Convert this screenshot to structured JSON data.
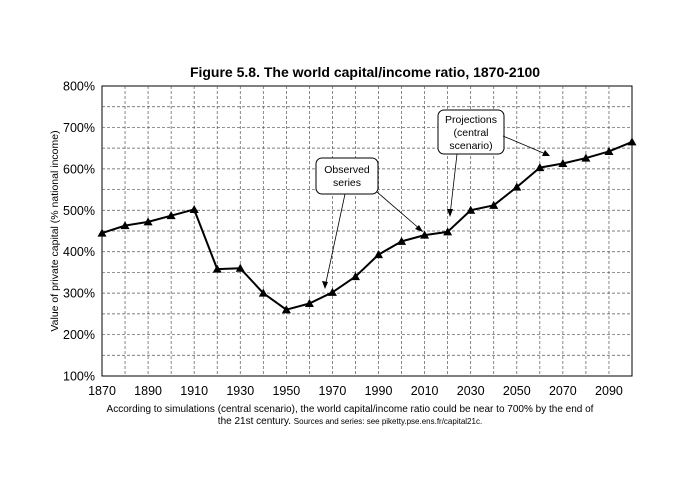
{
  "chart_data": {
    "type": "line",
    "title": "Figure 5.8. The world capital/income ratio, 1870-2100",
    "xlabel": "",
    "ylabel": "Value of private capital (% national income)",
    "x_ticks": [
      "1870",
      "1890",
      "1910",
      "1930",
      "1950",
      "1970",
      "1990",
      "2010",
      "2030",
      "2050",
      "2070",
      "2090"
    ],
    "y_ticks": [
      "100%",
      "200%",
      "300%",
      "400%",
      "500%",
      "600%",
      "700%",
      "800%"
    ],
    "xlim": [
      1870,
      2100
    ],
    "ylim": [
      100,
      800
    ],
    "y_unit": "%",
    "grid": true,
    "series": [
      {
        "marker": "triangle",
        "color": "#000000",
        "points": [
          [
            1870,
            445
          ],
          [
            1880,
            463
          ],
          [
            1890,
            472
          ],
          [
            1900,
            487
          ],
          [
            1910,
            502
          ],
          [
            1920,
            358
          ],
          [
            1930,
            360
          ],
          [
            1940,
            300
          ],
          [
            1950,
            260
          ],
          [
            1960,
            275
          ],
          [
            1970,
            302
          ],
          [
            1980,
            340
          ],
          [
            1990,
            393
          ],
          [
            2000,
            425
          ],
          [
            2010,
            440
          ],
          [
            2020,
            448
          ],
          [
            2030,
            500
          ],
          [
            2040,
            512
          ],
          [
            2050,
            556
          ],
          [
            2060,
            603
          ],
          [
            2070,
            613
          ],
          [
            2080,
            626
          ],
          [
            2090,
            642
          ],
          [
            2100,
            665
          ]
        ]
      }
    ],
    "annotations": [
      {
        "lines": [
          "Observed",
          "series"
        ]
      },
      {
        "lines": [
          "Projections",
          "(central",
          "scenario)"
        ]
      }
    ]
  },
  "caption": {
    "main": "According to simulations (central scenario), the world capital/income ratio could be near to 700% by the end of the 21st century.",
    "sources": "Sources and series: see piketty.pse.ens.fr/capital21c."
  }
}
